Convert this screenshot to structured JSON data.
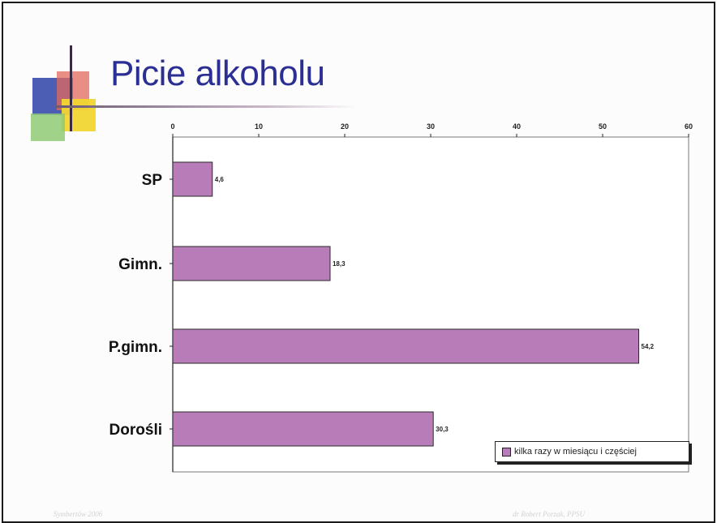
{
  "slide": {
    "title": "Picie alkoholu",
    "footer_left": "Symbertów 2006",
    "footer_right": "dr Robert Porzak, PPSU"
  },
  "colors": {
    "bar_fill": "#b87db8",
    "title": "#2b2e93"
  },
  "chart_data": {
    "type": "bar",
    "orientation": "horizontal",
    "title": "Picie alkoholu",
    "categories": [
      "SP",
      "Gimn.",
      "P.gimn.",
      "Dorośli"
    ],
    "series": [
      {
        "name": "kilka razy w miesiącu i częściej",
        "values": [
          4.6,
          18.3,
          54.2,
          30.3
        ],
        "labels": [
          "4,6",
          "18,3",
          "54,2",
          "30,3"
        ]
      }
    ],
    "xlim": [
      0,
      60
    ],
    "x_ticks": [
      0,
      10,
      20,
      30,
      40,
      50,
      60
    ],
    "x_axis_position": "top",
    "grid": false,
    "legend_position": "bottom-right",
    "xlabel": "",
    "ylabel": ""
  }
}
